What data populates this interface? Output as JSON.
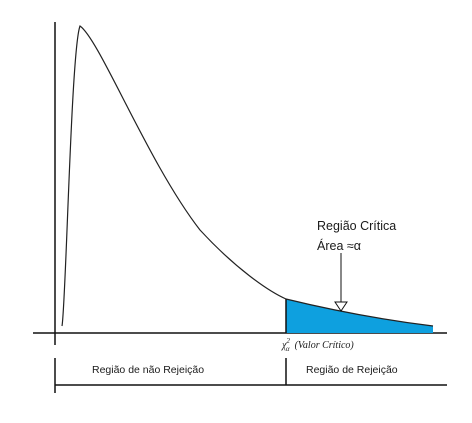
{
  "diagram": {
    "critical_region": {
      "title": "Região Crítica",
      "area": "Área ≈α",
      "fill_color": "#0ea0df"
    },
    "critical_value": {
      "symbol": "χ",
      "superscript": "2",
      "subscript": "α",
      "label": "(Valor Crítico)"
    },
    "regions": {
      "non_rejection": "Região de não Rejeição",
      "rejection": "Região de Rejeição"
    }
  }
}
